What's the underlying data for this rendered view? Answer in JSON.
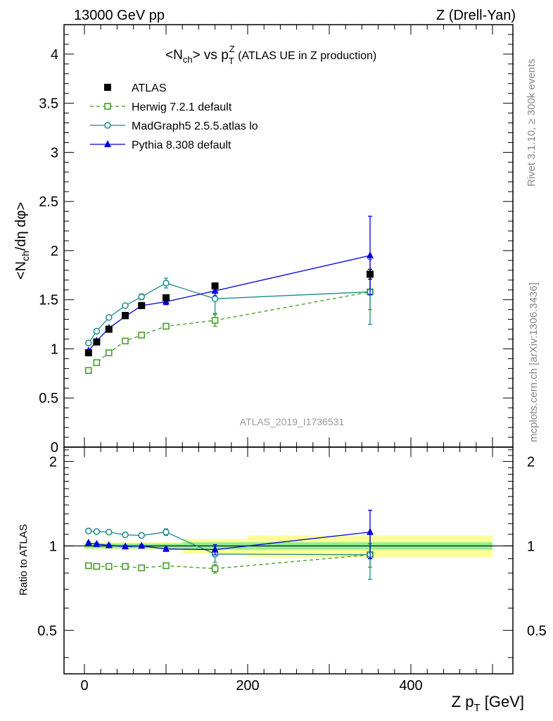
{
  "header": {
    "left": "13000 GeV pp",
    "right": "Z (Drell-Yan)"
  },
  "side_labels": {
    "rivet": "Rivet 3.1.10, ≥ 300k events",
    "mcplots": "mcplots.cern.ch [arXiv:1306.3436]"
  },
  "watermark": "ATLAS_2019_I1736531",
  "chart_data": [
    {
      "type": "scatter",
      "panel": "main",
      "title_parts": {
        "nch_open": "<N",
        "nch_sub": "ch",
        "mid": "> vs p",
        "pt_sub": "T",
        "pt_sup": "Z",
        "rest": " (ATLAS UE in Z production)"
      },
      "ylabel_parts": {
        "a": "<N",
        "sub": "ch",
        "b": "/dη dφ>"
      },
      "xlim": [
        -25,
        525
      ],
      "ylim": [
        0,
        4.3
      ],
      "yticks": [
        0,
        0.5,
        1,
        1.5,
        2,
        2.5,
        3,
        3.5,
        4
      ],
      "ytick_labels": [
        "0",
        "0.5",
        "1",
        "1.5",
        "2",
        "2.5",
        "3",
        "3.5",
        "4"
      ],
      "legend_position": "top-left",
      "series": [
        {
          "name": "ATLAS",
          "color": "#000000",
          "marker": "filled-square",
          "line": "none",
          "x": [
            5,
            15,
            30,
            50,
            70,
            100,
            160,
            350
          ],
          "y": [
            0.96,
            1.07,
            1.2,
            1.34,
            1.44,
            1.52,
            1.64,
            1.76
          ],
          "err": [
            0.02,
            0.02,
            0.02,
            0.02,
            0.02,
            0.02,
            0.03,
            0.05
          ]
        },
        {
          "name": "Herwig 7.2.1 default",
          "color": "#3a9a1a",
          "marker": "open-square",
          "line": "dashed",
          "x": [
            5,
            15,
            30,
            50,
            70,
            100,
            160,
            350
          ],
          "y": [
            0.78,
            0.86,
            0.96,
            1.08,
            1.14,
            1.23,
            1.29,
            1.58
          ],
          "err": [
            0.01,
            0.01,
            0.01,
            0.01,
            0.01,
            0.02,
            0.06,
            0.18
          ]
        },
        {
          "name": "MadGraph5 2.5.5.atlas lo",
          "color": "#1a8a8a",
          "marker": "open-circle",
          "line": "solid",
          "x": [
            5,
            15,
            30,
            50,
            70,
            100,
            160,
            350
          ],
          "y": [
            1.06,
            1.18,
            1.32,
            1.44,
            1.53,
            1.67,
            1.51,
            1.58
          ],
          "err": [
            0.01,
            0.01,
            0.01,
            0.01,
            0.03,
            0.05,
            0.15,
            0.33
          ]
        },
        {
          "name": "Pythia 8.308 default",
          "color": "#0000dd",
          "marker": "filled-triangle",
          "line": "solid",
          "x": [
            5,
            15,
            30,
            50,
            70,
            100,
            160,
            350
          ],
          "y": [
            0.98,
            1.08,
            1.21,
            1.33,
            1.44,
            1.48,
            1.59,
            1.95
          ],
          "err": [
            0.01,
            0.01,
            0.01,
            0.01,
            0.02,
            0.03,
            0.05,
            0.4
          ]
        }
      ]
    },
    {
      "type": "scatter",
      "panel": "ratio",
      "ylabel": "Ratio to ATLAS",
      "xlabel_parts": {
        "a": "Z p",
        "sub": "T",
        "b": " [GeV]"
      },
      "xlim": [
        -25,
        525
      ],
      "ylim": [
        0.35,
        2.25
      ],
      "xticks": [
        0,
        200,
        400
      ],
      "xtick_labels": [
        "0",
        "200",
        "400"
      ],
      "yticks": [
        0.5,
        1,
        2
      ],
      "ytick_labels": [
        "0.5",
        "1",
        "2"
      ],
      "bands": {
        "edges": [
          0,
          10,
          20,
          40,
          60,
          80,
          120,
          200,
          500
        ],
        "inner": [
          0.02,
          0.02,
          0.02,
          0.02,
          0.02,
          0.02,
          0.03,
          0.03
        ],
        "outer": [
          0.03,
          0.03,
          0.03,
          0.03,
          0.03,
          0.03,
          0.06,
          0.09
        ],
        "inner_color": "#90ee90",
        "outer_color": "#ffff99"
      },
      "series": [
        {
          "name": "Herwig 7.2.1 default",
          "color": "#3a9a1a",
          "marker": "open-square",
          "line": "dashed",
          "x": [
            5,
            15,
            30,
            50,
            70,
            100,
            160,
            350
          ],
          "y": [
            0.85,
            0.845,
            0.845,
            0.845,
            0.835,
            0.85,
            0.83,
            0.93
          ],
          "err": [
            0.01,
            0.01,
            0.01,
            0.01,
            0.01,
            0.01,
            0.03,
            0.09
          ]
        },
        {
          "name": "MadGraph5 2.5.5.atlas lo",
          "color": "#1a8a8a",
          "marker": "open-circle",
          "line": "solid",
          "x": [
            5,
            15,
            30,
            50,
            70,
            100,
            160,
            350
          ],
          "y": [
            1.13,
            1.125,
            1.12,
            1.095,
            1.09,
            1.12,
            0.935,
            0.93
          ],
          "err": [
            0.01,
            0.01,
            0.01,
            0.01,
            0.02,
            0.03,
            0.06,
            0.17
          ]
        },
        {
          "name": "Pythia 8.308 default",
          "color": "#0000dd",
          "marker": "filled-triangle",
          "line": "solid",
          "x": [
            5,
            15,
            30,
            50,
            70,
            100,
            160,
            350
          ],
          "y": [
            1.025,
            1.015,
            1.005,
            0.995,
            1.0,
            0.975,
            0.97,
            1.12
          ],
          "err": [
            0.01,
            0.01,
            0.01,
            0.01,
            0.01,
            0.01,
            0.04,
            0.22
          ]
        }
      ]
    }
  ]
}
